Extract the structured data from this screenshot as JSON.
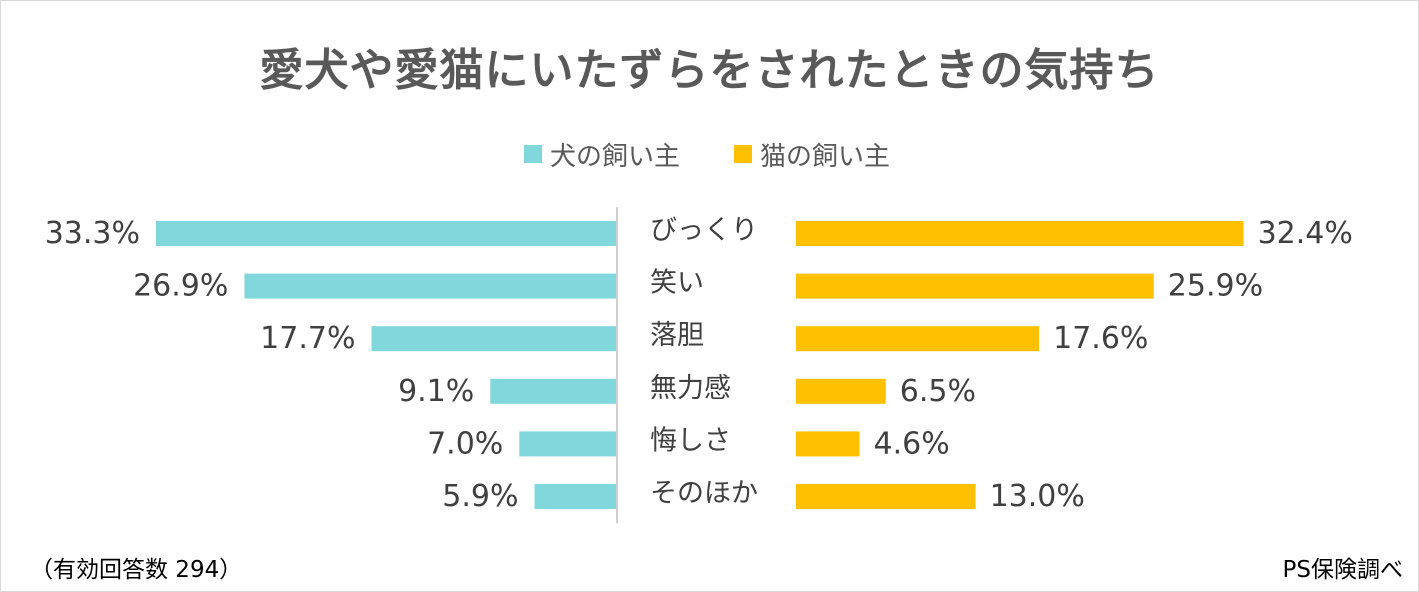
{
  "colors": {
    "dog": "#81d8dc",
    "cat": "#ffc000",
    "axis": "#bfbfbf"
  },
  "legend": {
    "dog_label": "犬の飼い主",
    "cat_label": "猫の飼い主"
  },
  "footer": {
    "note": "（有効回答数 294）",
    "source": "PS保険調べ"
  },
  "chart_data": {
    "type": "bar",
    "orientation": "horizontal",
    "layout": "butterfly",
    "title": "愛犬や愛猫にいたずらをされたときの気持ち",
    "categories": [
      "びっくり",
      "笑い",
      "落胆",
      "無力感",
      "悔しさ",
      "そのほか"
    ],
    "series": [
      {
        "name": "犬の飼い主",
        "values": [
          33.3,
          26.9,
          17.7,
          9.1,
          7.0,
          5.9
        ],
        "labels": [
          "33.3%",
          "26.9%",
          "17.7%",
          "9.1%",
          "7.0%",
          "5.9%"
        ]
      },
      {
        "name": "猫の飼い主",
        "values": [
          32.4,
          25.9,
          17.6,
          6.5,
          4.6,
          13.0
        ],
        "labels": [
          "32.4%",
          "25.9%",
          "17.6%",
          "6.5%",
          "4.6%",
          "13.0%"
        ]
      }
    ],
    "unit": "%",
    "xlim": [
      0,
      33.3
    ],
    "legend_position": "top-center",
    "grid": false
  }
}
